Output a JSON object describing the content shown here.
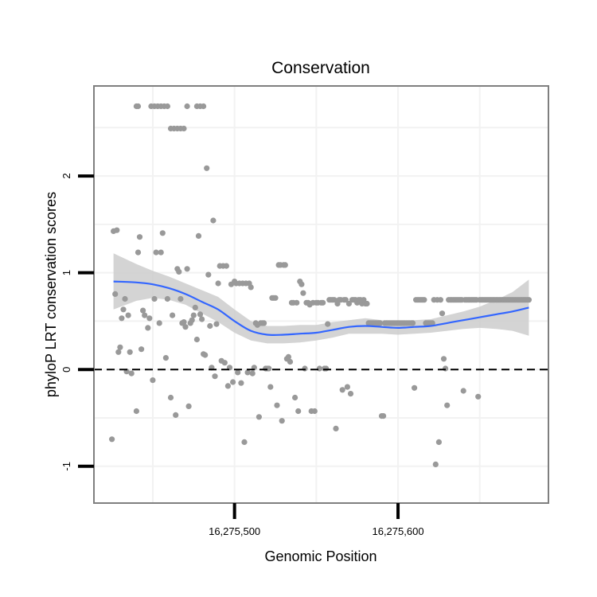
{
  "chart_data": {
    "type": "scatter",
    "title": "Conservation",
    "xlabel": "Genomic Position",
    "ylabel": "phyloP LRT conservation scores",
    "xlim": [
      16275414,
      16275692
    ],
    "ylim": [
      -1.38,
      2.93
    ],
    "x_ticks": [
      {
        "value": 16275500,
        "label": "16,275,500"
      },
      {
        "value": 16275600,
        "label": "16,275,600"
      }
    ],
    "y_ticks": [
      {
        "value": -1,
        "label": "-1"
      },
      {
        "value": 0,
        "label": "0"
      },
      {
        "value": 1,
        "label": "1"
      },
      {
        "value": 2,
        "label": "2"
      }
    ],
    "x_gridlines": [
      16275450,
      16275500,
      16275550,
      16275600,
      16275650
    ],
    "y_gridlines": [
      -1,
      -0.5,
      0,
      0.5,
      1,
      1.5,
      2,
      2.5
    ],
    "reference_line": {
      "y": 0,
      "style": "dashed"
    },
    "grid": true,
    "legend": "none",
    "colors": {
      "points": "#999999",
      "smooth_line": "#3366ff",
      "ribbon": "#cccccc",
      "panel_border": "#7f7f7f",
      "grid": "#f2f2f2"
    },
    "points": [
      [
        16275426,
        1.43
      ],
      [
        16275428,
        1.44
      ],
      [
        16275427,
        0.78
      ],
      [
        16275429,
        0.18
      ],
      [
        16275430,
        0.23
      ],
      [
        16275431,
        0.53
      ],
      [
        16275432,
        0.62
      ],
      [
        16275433,
        0.73
      ],
      [
        16275434,
        -0.02
      ],
      [
        16275436,
        0.18
      ],
      [
        16275437,
        -0.04
      ],
      [
        16275435,
        0.56
      ],
      [
        16275425,
        -0.72
      ],
      [
        16275440,
        -0.43
      ],
      [
        16275441,
        1.21
      ],
      [
        16275442,
        1.37
      ],
      [
        16275443,
        0.21
      ],
      [
        16275444,
        0.61
      ],
      [
        16275445,
        0.56
      ],
      [
        16275447,
        0.43
      ],
      [
        16275448,
        0.53
      ],
      [
        16275450,
        -0.11
      ],
      [
        16275451,
        0.73
      ],
      [
        16275452,
        1.21
      ],
      [
        16275454,
        0.48
      ],
      [
        16275455,
        1.21
      ],
      [
        16275456,
        1.41
      ],
      [
        16275458,
        0.12
      ],
      [
        16275459,
        0.73
      ],
      [
        16275461,
        -0.29
      ],
      [
        16275462,
        0.56
      ],
      [
        16275464,
        -0.47
      ],
      [
        16275465,
        1.04
      ],
      [
        16275466,
        1.01
      ],
      [
        16275467,
        0.73
      ],
      [
        16275468,
        0.48
      ],
      [
        16275469,
        0.49
      ],
      [
        16275470,
        0.44
      ],
      [
        16275471,
        1.04
      ],
      [
        16275472,
        -0.38
      ],
      [
        16275473,
        0.48
      ],
      [
        16275474,
        0.51
      ],
      [
        16275475,
        0.56
      ],
      [
        16275476,
        0.64
      ],
      [
        16275477,
        0.31
      ],
      [
        16275478,
        1.38
      ],
      [
        16275479,
        0.57
      ],
      [
        16275480,
        0.52
      ],
      [
        16275481,
        0.16
      ],
      [
        16275482,
        0.15
      ],
      [
        16275483,
        2.08
      ],
      [
        16275484,
        0.98
      ],
      [
        16275485,
        0.45
      ],
      [
        16275486,
        0.02
      ],
      [
        16275487,
        1.54
      ],
      [
        16275488,
        -0.07
      ],
      [
        16275489,
        0.47
      ],
      [
        16275490,
        0.89
      ],
      [
        16275491,
        1.07
      ],
      [
        16275492,
        0.09
      ],
      [
        16275493,
        1.07
      ],
      [
        16275494,
        0.07
      ],
      [
        16275495,
        1.07
      ],
      [
        16275496,
        -0.17
      ],
      [
        16275497,
        0.02
      ],
      [
        16275498,
        0.88
      ],
      [
        16275499,
        -0.13
      ],
      [
        16275500,
        0.91
      ],
      [
        16275501,
        0.89
      ],
      [
        16275502,
        -0.03
      ],
      [
        16275503,
        0.89
      ],
      [
        16275504,
        -0.14
      ],
      [
        16275505,
        0.89
      ],
      [
        16275506,
        -0.75
      ],
      [
        16275507,
        0.89
      ],
      [
        16275508,
        -0.03
      ],
      [
        16275509,
        0.89
      ],
      [
        16275510,
        0.85
      ],
      [
        16275511,
        -0.04
      ],
      [
        16275512,
        0.02
      ],
      [
        16275513,
        0.48
      ],
      [
        16275514,
        0.46
      ],
      [
        16275515,
        -0.49
      ],
      [
        16275516,
        0.48
      ],
      [
        16275517,
        0.48
      ],
      [
        16275518,
        0.48
      ],
      [
        16275519,
        0.01
      ],
      [
        16275520,
        0.01
      ],
      [
        16275521,
        0.01
      ],
      [
        16275522,
        -0.18
      ],
      [
        16275523,
        0.74
      ],
      [
        16275524,
        0.74
      ],
      [
        16275525,
        0.74
      ],
      [
        16275526,
        -0.37
      ],
      [
        16275527,
        1.08
      ],
      [
        16275528,
        1.08
      ],
      [
        16275529,
        -0.53
      ],
      [
        16275530,
        1.08
      ],
      [
        16275531,
        1.08
      ],
      [
        16275532,
        0.11
      ],
      [
        16275533,
        0.13
      ],
      [
        16275534,
        0.08
      ],
      [
        16275535,
        0.69
      ],
      [
        16275536,
        0.69
      ],
      [
        16275537,
        -0.29
      ],
      [
        16275538,
        0.69
      ],
      [
        16275539,
        -0.43
      ],
      [
        16275540,
        0.91
      ],
      [
        16275541,
        0.88
      ],
      [
        16275542,
        0.79
      ],
      [
        16275543,
        0.01
      ],
      [
        16275544,
        0.69
      ],
      [
        16275545,
        0.69
      ],
      [
        16275546,
        0.67
      ],
      [
        16275547,
        -0.43
      ],
      [
        16275548,
        0.69
      ],
      [
        16275549,
        -0.43
      ],
      [
        16275550,
        0.69
      ],
      [
        16275551,
        0.69
      ],
      [
        16275552,
        0.01
      ],
      [
        16275553,
        0.69
      ],
      [
        16275554,
        0.69
      ],
      [
        16275555,
        0.01
      ],
      [
        16275556,
        0.01
      ],
      [
        16275557,
        0.47
      ],
      [
        16275558,
        0.72
      ],
      [
        16275559,
        0.72
      ],
      [
        16275560,
        0.72
      ],
      [
        16275561,
        0.72
      ],
      [
        16275562,
        -0.61
      ],
      [
        16275563,
        0.68
      ],
      [
        16275564,
        0.72
      ],
      [
        16275565,
        0.72
      ],
      [
        16275566,
        -0.21
      ],
      [
        16275567,
        0.72
      ],
      [
        16275568,
        0.72
      ],
      [
        16275569,
        -0.18
      ],
      [
        16275570,
        0.68
      ],
      [
        16275571,
        -0.25
      ],
      [
        16275572,
        0.72
      ],
      [
        16275573,
        0.72
      ],
      [
        16275574,
        0.72
      ],
      [
        16275575,
        0.69
      ],
      [
        16275576,
        0.72
      ],
      [
        16275577,
        0.72
      ],
      [
        16275578,
        0.68
      ],
      [
        16275579,
        0.72
      ],
      [
        16275580,
        0.68
      ],
      [
        16275581,
        0.68
      ],
      [
        16275582,
        0.48
      ],
      [
        16275583,
        0.48
      ],
      [
        16275584,
        0.48
      ],
      [
        16275585,
        0.48
      ],
      [
        16275586,
        0.48
      ],
      [
        16275587,
        0.48
      ],
      [
        16275588,
        0.48
      ],
      [
        16275589,
        0.48
      ],
      [
        16275590,
        -0.48
      ],
      [
        16275591,
        -0.48
      ],
      [
        16275592,
        0.48
      ],
      [
        16275593,
        0.48
      ],
      [
        16275594,
        0.48
      ],
      [
        16275595,
        0.48
      ],
      [
        16275596,
        0.48
      ],
      [
        16275597,
        0.48
      ],
      [
        16275598,
        0.48
      ],
      [
        16275599,
        0.48
      ],
      [
        16275600,
        0.48
      ],
      [
        16275601,
        0.48
      ],
      [
        16275602,
        0.48
      ],
      [
        16275603,
        0.48
      ],
      [
        16275604,
        0.48
      ],
      [
        16275605,
        0.48
      ],
      [
        16275606,
        0.48
      ],
      [
        16275607,
        0.48
      ],
      [
        16275608,
        0.48
      ],
      [
        16275609,
        0.48
      ],
      [
        16275610,
        -0.19
      ],
      [
        16275611,
        0.72
      ],
      [
        16275612,
        0.72
      ],
      [
        16275613,
        0.72
      ],
      [
        16275614,
        0.72
      ],
      [
        16275615,
        0.72
      ],
      [
        16275616,
        0.72
      ],
      [
        16275617,
        0.48
      ],
      [
        16275618,
        0.48
      ],
      [
        16275619,
        0.48
      ],
      [
        16275620,
        0.48
      ],
      [
        16275621,
        0.48
      ],
      [
        16275622,
        0.72
      ],
      [
        16275623,
        -0.98
      ],
      [
        16275624,
        0.72
      ],
      [
        16275625,
        -0.75
      ],
      [
        16275626,
        0.72
      ],
      [
        16275627,
        0.58
      ],
      [
        16275628,
        0.11
      ],
      [
        16275629,
        0.01
      ],
      [
        16275630,
        -0.37
      ],
      [
        16275631,
        0.72
      ],
      [
        16275632,
        0.72
      ],
      [
        16275633,
        0.72
      ],
      [
        16275634,
        0.72
      ],
      [
        16275635,
        0.72
      ],
      [
        16275636,
        0.72
      ],
      [
        16275637,
        0.72
      ],
      [
        16275638,
        0.72
      ],
      [
        16275639,
        0.72
      ],
      [
        16275640,
        -0.22
      ],
      [
        16275641,
        0.72
      ],
      [
        16275642,
        0.72
      ],
      [
        16275643,
        0.72
      ],
      [
        16275644,
        0.72
      ],
      [
        16275645,
        0.72
      ],
      [
        16275646,
        0.72
      ],
      [
        16275647,
        0.72
      ],
      [
        16275648,
        0.72
      ],
      [
        16275649,
        -0.28
      ],
      [
        16275650,
        0.72
      ],
      [
        16275651,
        0.72
      ],
      [
        16275652,
        0.72
      ],
      [
        16275653,
        0.72
      ],
      [
        16275654,
        0.72
      ],
      [
        16275655,
        0.72
      ],
      [
        16275656,
        0.72
      ],
      [
        16275657,
        0.72
      ],
      [
        16275658,
        0.72
      ],
      [
        16275659,
        0.72
      ],
      [
        16275660,
        0.72
      ],
      [
        16275661,
        0.72
      ],
      [
        16275662,
        0.72
      ],
      [
        16275663,
        0.72
      ],
      [
        16275664,
        0.72
      ],
      [
        16275665,
        0.72
      ],
      [
        16275666,
        0.72
      ],
      [
        16275667,
        0.72
      ],
      [
        16275668,
        0.72
      ],
      [
        16275669,
        0.72
      ],
      [
        16275670,
        0.72
      ],
      [
        16275671,
        0.72
      ],
      [
        16275672,
        0.72
      ],
      [
        16275673,
        0.72
      ],
      [
        16275674,
        0.72
      ],
      [
        16275675,
        0.72
      ],
      [
        16275676,
        0.72
      ],
      [
        16275677,
        0.72
      ],
      [
        16275678,
        0.72
      ],
      [
        16275679,
        0.72
      ],
      [
        16275680,
        0.72
      ],
      [
        16275440,
        2.72
      ],
      [
        16275441,
        2.72
      ],
      [
        16275449,
        2.72
      ],
      [
        16275451,
        2.72
      ],
      [
        16275453,
        2.72
      ],
      [
        16275455,
        2.72
      ],
      [
        16275457,
        2.72
      ],
      [
        16275459,
        2.72
      ],
      [
        16275461,
        2.49
      ],
      [
        16275463,
        2.49
      ],
      [
        16275465,
        2.49
      ],
      [
        16275467,
        2.49
      ],
      [
        16275469,
        2.49
      ],
      [
        16275471,
        2.72
      ],
      [
        16275477,
        2.72
      ],
      [
        16275479,
        2.72
      ],
      [
        16275481,
        2.72
      ]
    ],
    "smooth_line": {
      "name": "",
      "x": [
        16275426,
        16275440,
        16275450,
        16275460,
        16275470,
        16275480,
        16275490,
        16275500,
        16275510,
        16275520,
        16275530,
        16275540,
        16275550,
        16275560,
        16275570,
        16275580,
        16275590,
        16275600,
        16275610,
        16275620,
        16275630,
        16275640,
        16275650,
        16275660,
        16275670,
        16275680
      ],
      "y": [
        0.91,
        0.9,
        0.88,
        0.84,
        0.78,
        0.7,
        0.62,
        0.5,
        0.4,
        0.36,
        0.36,
        0.37,
        0.38,
        0.41,
        0.44,
        0.45,
        0.44,
        0.43,
        0.44,
        0.45,
        0.48,
        0.51,
        0.54,
        0.57,
        0.6,
        0.64
      ],
      "lower": [
        0.62,
        0.71,
        0.74,
        0.72,
        0.67,
        0.58,
        0.49,
        0.38,
        0.3,
        0.27,
        0.27,
        0.28,
        0.3,
        0.33,
        0.37,
        0.37,
        0.37,
        0.36,
        0.37,
        0.38,
        0.4,
        0.42,
        0.43,
        0.42,
        0.4,
        0.35
      ],
      "upper": [
        1.2,
        1.09,
        1.02,
        0.96,
        0.89,
        0.82,
        0.75,
        0.62,
        0.5,
        0.45,
        0.45,
        0.46,
        0.46,
        0.49,
        0.51,
        0.53,
        0.51,
        0.5,
        0.51,
        0.52,
        0.56,
        0.6,
        0.65,
        0.72,
        0.8,
        0.93
      ]
    }
  }
}
